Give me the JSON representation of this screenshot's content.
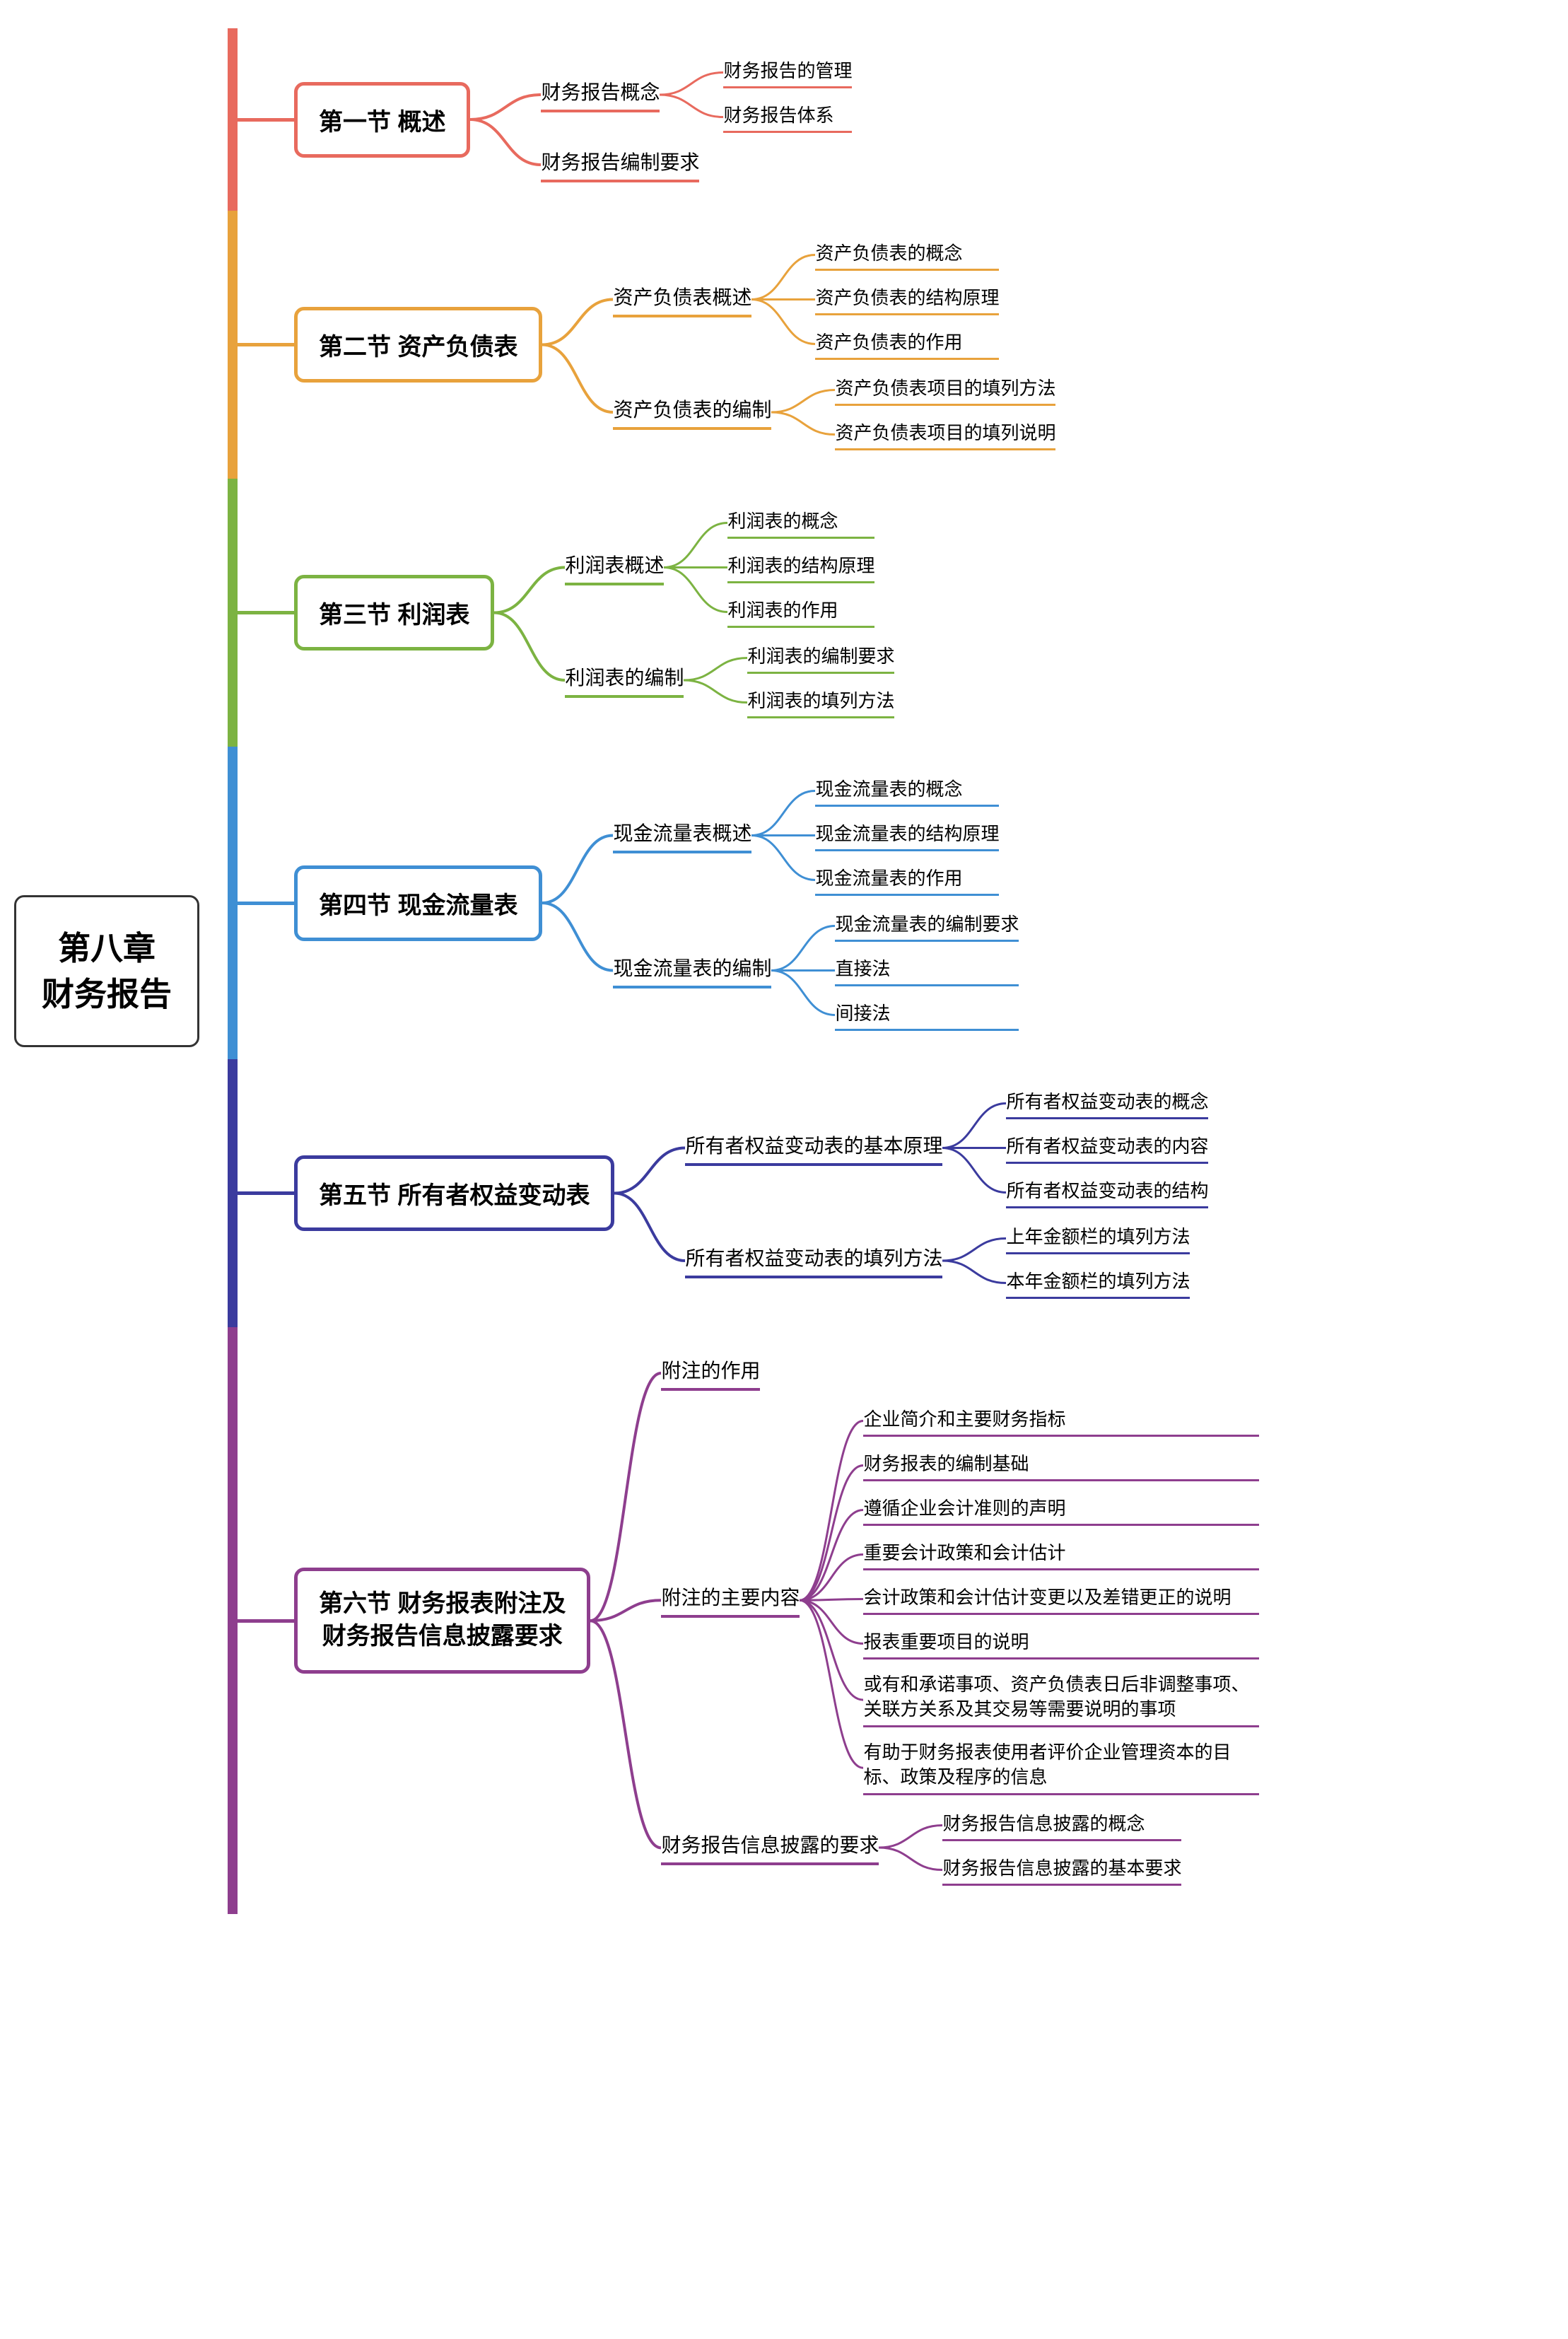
{
  "root": {
    "line1": "第八章",
    "line2": "财务报告"
  },
  "colors": {
    "s1": "#e86a5e",
    "s2": "#e8a23c",
    "s3": "#7cb342",
    "s4": "#3f8fd4",
    "s5": "#3b3b9e",
    "s6": "#8e3e8e"
  },
  "style": {
    "root_border": "#333333",
    "background": "#ffffff",
    "root_fontsize": 46,
    "section_fontsize": 34,
    "l2_fontsize": 28,
    "l3_fontsize": 26,
    "border_radius": 14,
    "section_border_width": 5,
    "l2_underline_width": 4,
    "l3_underline_width": 3,
    "trunk_width": 14
  },
  "sections": [
    {
      "id": "s1",
      "title": "第一节 概述",
      "children": [
        {
          "label": "财务报告概念",
          "children": [
            "财务报告的管理",
            "财务报告体系"
          ]
        },
        {
          "label": "财务报告编制要求",
          "children": []
        }
      ]
    },
    {
      "id": "s2",
      "title": "第二节 资产负债表",
      "children": [
        {
          "label": "资产负债表概述",
          "children": [
            "资产负债表的概念",
            "资产负债表的结构原理",
            "资产负债表的作用"
          ]
        },
        {
          "label": "资产负债表的编制",
          "children": [
            "资产负债表项目的填列方法",
            "资产负债表项目的填列说明"
          ]
        }
      ]
    },
    {
      "id": "s3",
      "title": "第三节 利润表",
      "children": [
        {
          "label": "利润表概述",
          "children": [
            "利润表的概念",
            "利润表的结构原理",
            "利润表的作用"
          ]
        },
        {
          "label": "利润表的编制",
          "children": [
            "利润表的编制要求",
            "利润表的填列方法"
          ]
        }
      ]
    },
    {
      "id": "s4",
      "title": "第四节 现金流量表",
      "children": [
        {
          "label": "现金流量表概述",
          "children": [
            "现金流量表的概念",
            "现金流量表的结构原理",
            "现金流量表的作用"
          ]
        },
        {
          "label": "现金流量表的编制",
          "children": [
            "现金流量表的编制要求",
            "直接法",
            "间接法"
          ]
        }
      ]
    },
    {
      "id": "s5",
      "title": "第五节 所有者权益变动表",
      "children": [
        {
          "label": "所有者权益变动表的基本原理",
          "children": [
            "所有者权益变动表的概念",
            "所有者权益变动表的内容",
            "所有者权益变动表的结构"
          ]
        },
        {
          "label": "所有者权益变动表的填列方法",
          "children": [
            "上年金额栏的填列方法",
            "本年金额栏的填列方法"
          ]
        }
      ]
    },
    {
      "id": "s6",
      "title": "第六节 财务报表附注及\n财务报告信息披露要求",
      "children": [
        {
          "label": "附注的作用",
          "children": []
        },
        {
          "label": "附注的主要内容",
          "children": [
            "企业简介和主要财务指标",
            "财务报表的编制基础",
            "遵循企业会计准则的声明",
            "重要会计政策和会计估计",
            "会计政策和会计估计变更以及差错更正的说明",
            "报表重要项目的说明",
            "或有和承诺事项、资产负债表日后非调整事项、关联方关系及其交易等需要说明的事项",
            "有助于财务报表使用者评价企业管理资本的目标、政策及程序的信息"
          ]
        },
        {
          "label": "财务报告信息披露的要求",
          "children": [
            "财务报告信息披露的概念",
            "财务报告信息披露的基本要求"
          ]
        }
      ]
    }
  ]
}
